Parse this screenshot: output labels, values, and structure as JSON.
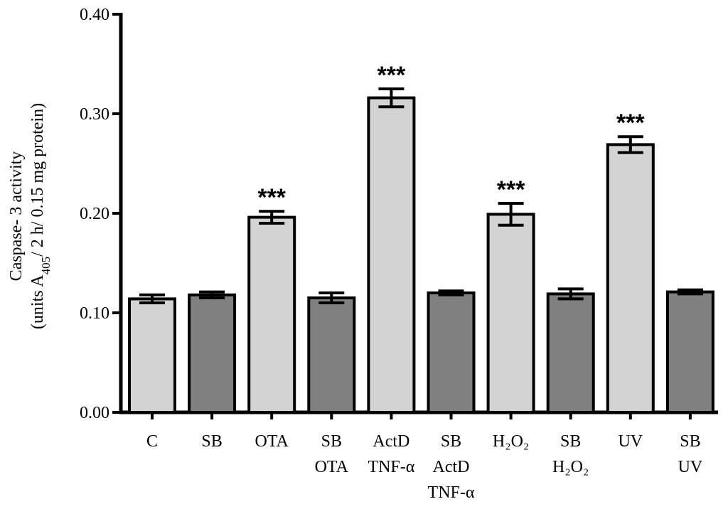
{
  "chart_data": {
    "type": "bar",
    "categories": [
      [
        "C"
      ],
      [
        "SB"
      ],
      [
        "OTA"
      ],
      [
        "SB",
        "OTA"
      ],
      [
        "ActD",
        "TNF-α"
      ],
      [
        "SB",
        "ActD",
        "TNF-α"
      ],
      [
        "H₂O₂"
      ],
      [
        "SB",
        "H₂O₂"
      ],
      [
        "UV"
      ],
      [
        "SB",
        "UV"
      ]
    ],
    "values": [
      0.114,
      0.118,
      0.196,
      0.115,
      0.316,
      0.12,
      0.199,
      0.119,
      0.269,
      0.121
    ],
    "errors": [
      0.004,
      0.003,
      0.006,
      0.005,
      0.009,
      0.002,
      0.011,
      0.005,
      0.008,
      0.002
    ],
    "significance": [
      "",
      "",
      "***",
      "",
      "***",
      "",
      "***",
      "",
      "***",
      ""
    ],
    "bar_colors": [
      "#d3d3d3",
      "#808080",
      "#d3d3d3",
      "#808080",
      "#d3d3d3",
      "#808080",
      "#d3d3d3",
      "#808080",
      "#d3d3d3",
      "#808080"
    ],
    "ylabel_line1": "Caspase- 3 activity",
    "ylabel_line2_prefix": "(units A",
    "ylabel_line2_sub": "405",
    "ylabel_line2_suffix": "/ 2 h/ 0.15 mg protein)",
    "yticks": [
      "0.00",
      "0.10",
      "0.20",
      "0.30",
      "0.40"
    ],
    "ylim": [
      0,
      0.4
    ],
    "grid": false
  }
}
